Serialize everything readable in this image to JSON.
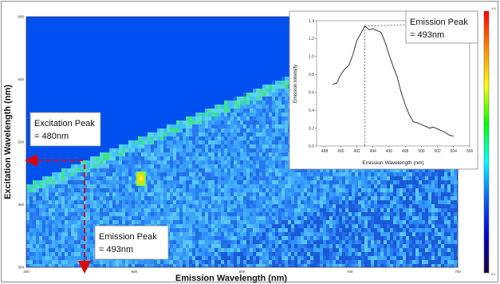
{
  "chart_data": [
    {
      "type": "heatmap",
      "title": "",
      "xlabel": "Emission Wavelength (nm)",
      "ylabel": "Excitation Wavelength (nm)",
      "xlim": [
        400,
        750
      ],
      "ylim": [
        300,
        800
      ],
      "x_ticks": [
        "400",
        "500",
        "600",
        "700",
        "750"
      ],
      "y_ticks": [
        "300",
        "400",
        "500",
        "600",
        "800"
      ],
      "colorbar": {
        "position": "right",
        "stops": [
          "#ff0000",
          "#ff8c00",
          "#ffff00",
          "#00ff00",
          "#00ffff",
          "#0064ff",
          "#0000c8",
          "#1a0033"
        ],
        "max_label": "1.5",
        "min_label": "0.1"
      },
      "peak": {
        "excitation": 480,
        "emission": 493,
        "peak_color": "#ffd200"
      },
      "annotations": [
        {
          "id": "excitation",
          "lines": [
            "Excitation Peak",
            "= 480nm"
          ]
        },
        {
          "id": "emission",
          "lines": [
            "Emission Peak",
            "= 493nm"
          ]
        }
      ],
      "colors": {
        "background": "#0050f0",
        "field": "#3aa0ff",
        "arrow": "#e00000"
      }
    },
    {
      "type": "line",
      "title": "",
      "xlabel": "Emission Wavelength (nm)",
      "ylabel": "Emission Intensity",
      "xlim": [
        487,
        506
      ],
      "ylim": [
        0,
        1.4
      ],
      "x_ticks": [
        488,
        490,
        492,
        494,
        496,
        498,
        500,
        502,
        504,
        506
      ],
      "y_ticks": [
        "0.0",
        "0.2",
        "0.4",
        "0.6",
        "0.8",
        "1.0",
        "1.2",
        "1.4"
      ],
      "x": [
        489.0,
        489.5,
        490.0,
        490.5,
        491.0,
        491.5,
        492.0,
        492.5,
        493.0,
        493.5,
        494.0,
        494.5,
        495.0,
        495.5,
        496.0,
        496.5,
        497.0,
        497.5,
        498.0,
        498.5,
        499.0,
        499.5,
        500.0,
        500.5,
        501.0,
        501.5,
        502.0,
        502.5,
        503.0,
        503.5,
        504.0
      ],
      "y": [
        0.69,
        0.7,
        0.8,
        0.86,
        0.9,
        1.02,
        1.18,
        1.26,
        1.34,
        1.3,
        1.31,
        1.29,
        1.27,
        1.16,
        1.02,
        0.89,
        0.77,
        0.6,
        0.46,
        0.35,
        0.27,
        0.26,
        0.24,
        0.22,
        0.2,
        0.21,
        0.19,
        0.17,
        0.15,
        0.12,
        0.11
      ],
      "peak_x": 493,
      "peak_y": 1.34,
      "annotation": {
        "lines": [
          "Emission Peak",
          "= 493nm"
        ]
      }
    }
  ]
}
